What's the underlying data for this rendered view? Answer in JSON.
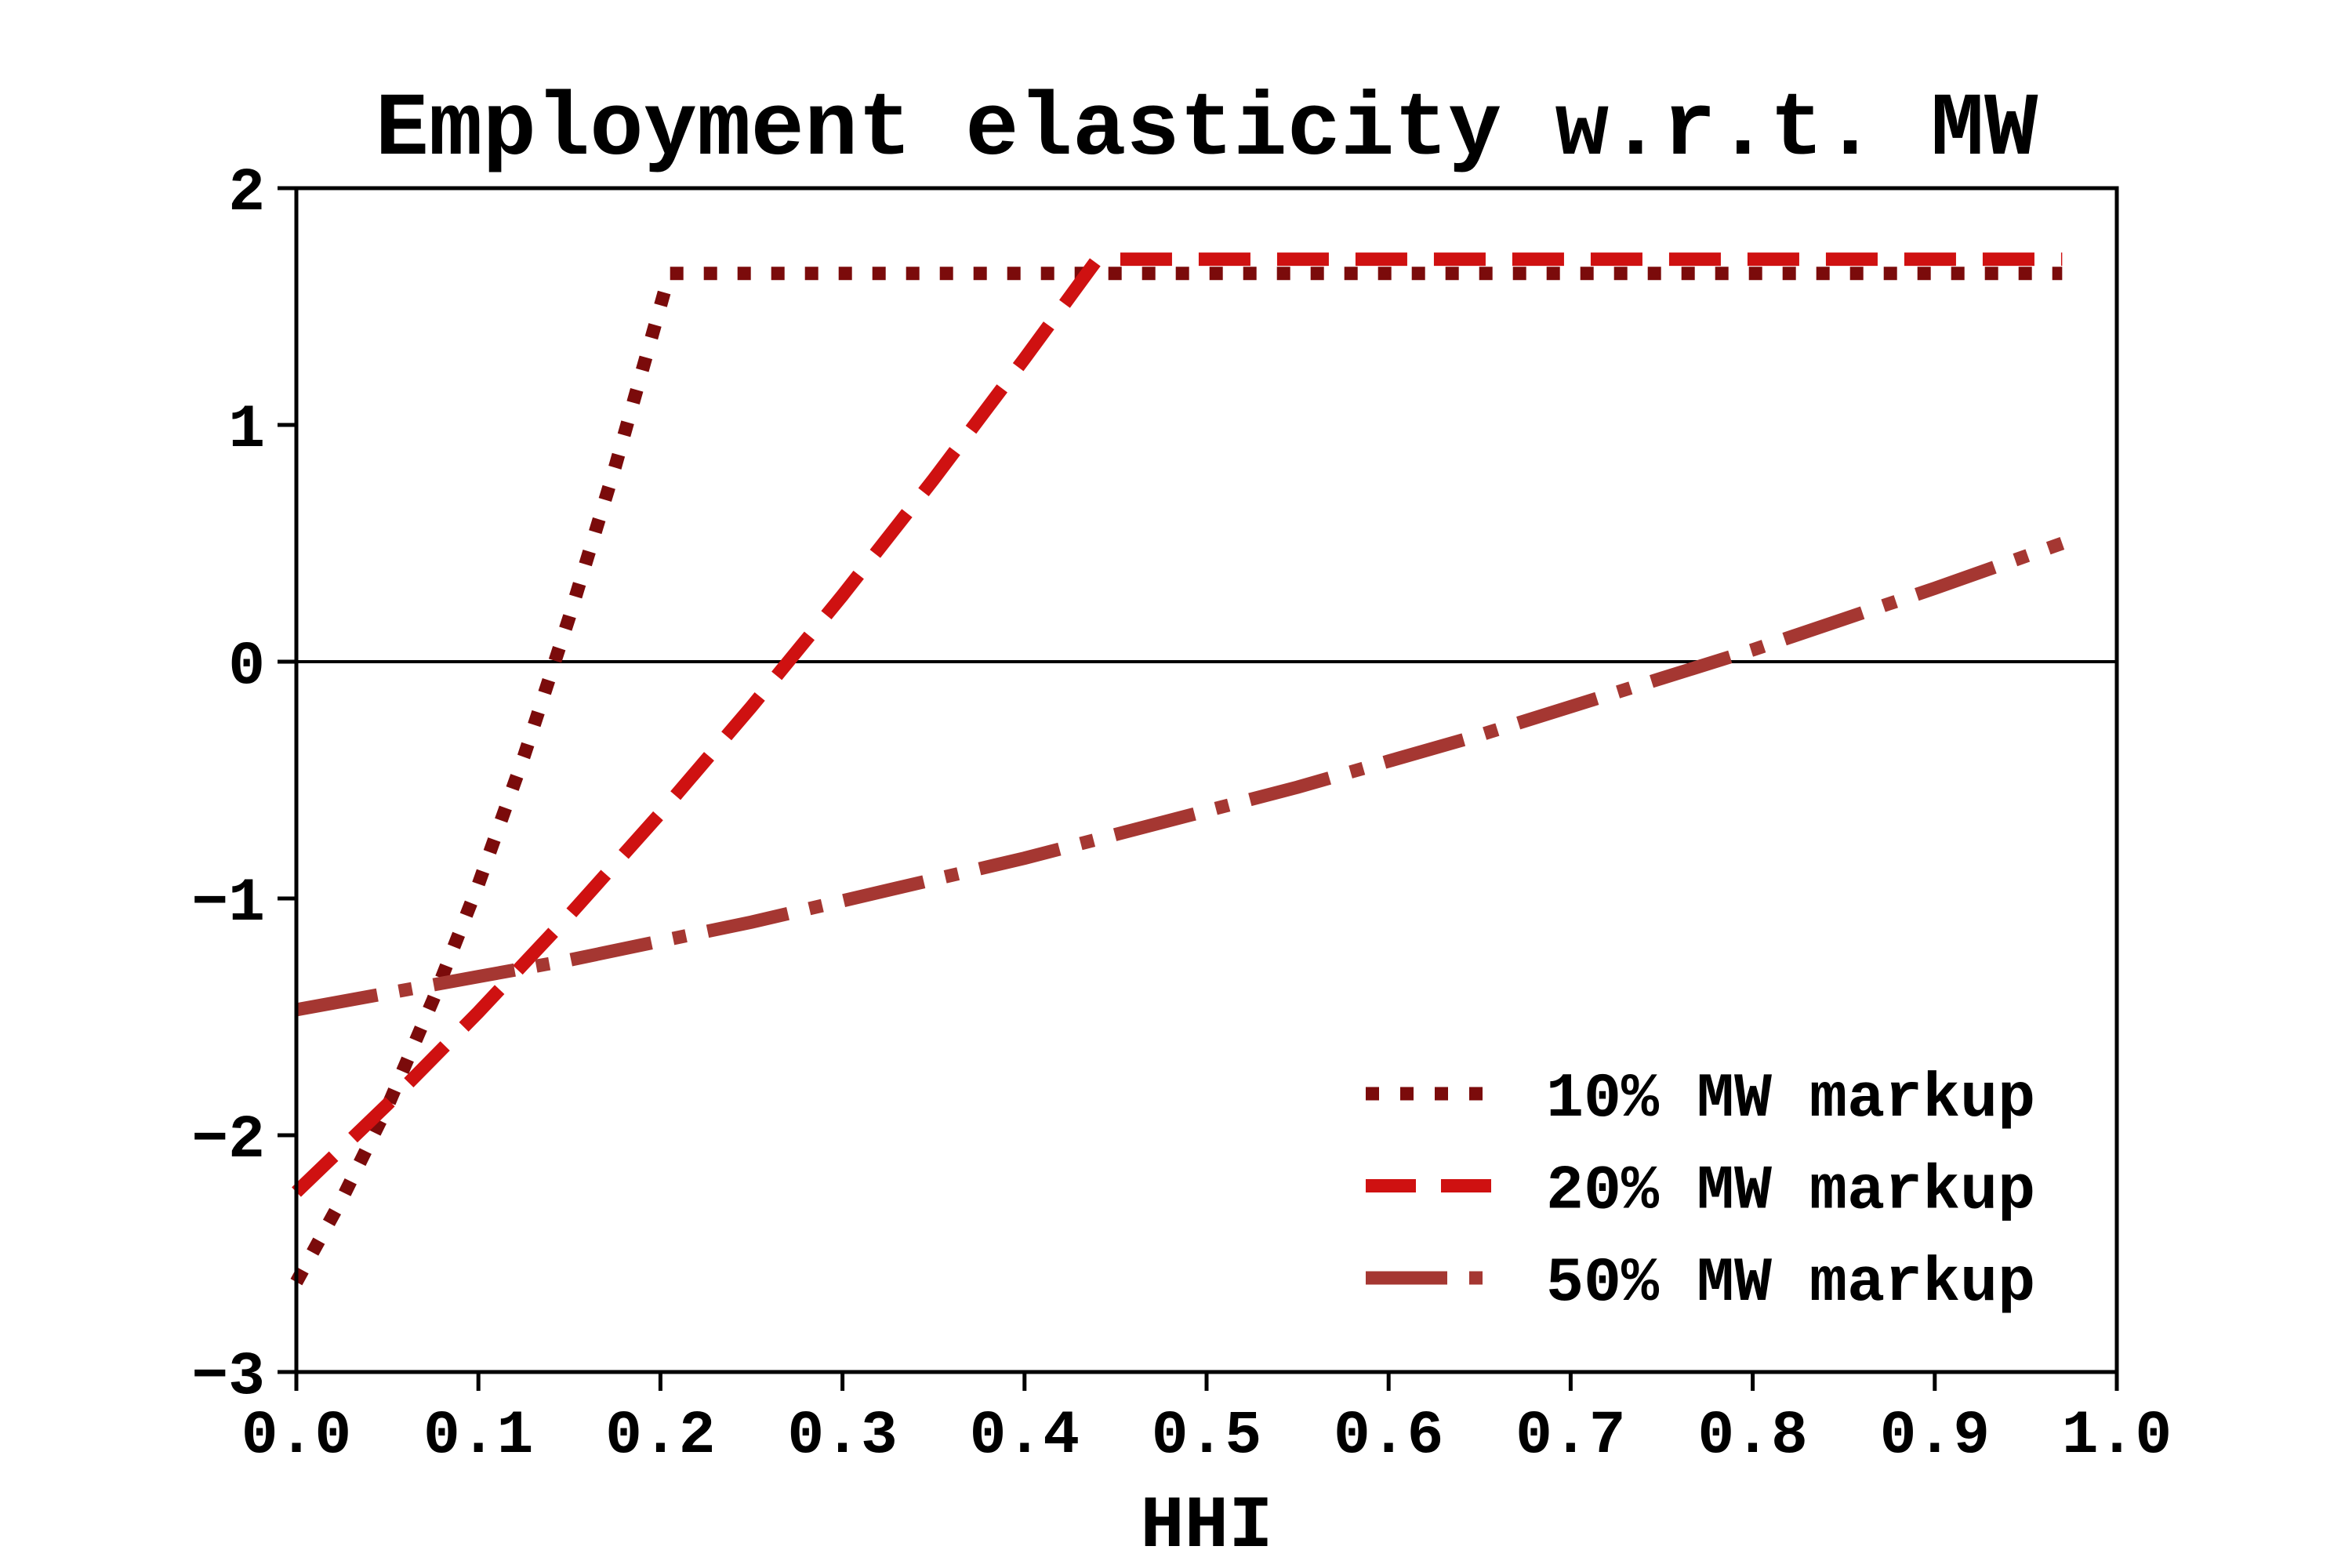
{
  "figure": {
    "background": "#ffffff"
  },
  "chart_data": {
    "type": "line",
    "title": "Employment elasticity w.r.t. MW",
    "xlabel": "HHI",
    "ylabel": "",
    "xlim": [
      0.0,
      1.0
    ],
    "ylim": [
      -3,
      2
    ],
    "grid": false,
    "zero_line": true,
    "legend_position": "lower right",
    "legend_frame": false,
    "axis_color": "#000000",
    "x_ticks": {
      "values": [
        0.0,
        0.1,
        0.2,
        0.3,
        0.4,
        0.5,
        0.6,
        0.7,
        0.8,
        0.9,
        1.0
      ],
      "labels": [
        "0.0",
        "0.1",
        "0.2",
        "0.3",
        "0.4",
        "0.5",
        "0.6",
        "0.7",
        "0.8",
        "0.9",
        "1.0"
      ]
    },
    "y_ticks": {
      "values": [
        -3,
        -2,
        -1,
        0,
        1,
        2
      ],
      "labels": [
        "−3",
        "−2",
        "−1",
        "0",
        "1",
        "2"
      ]
    },
    "series": [
      {
        "name": "10% MW markup",
        "linestyle": "dotted",
        "color": "#7b0b0b",
        "x": [
          0.0,
          0.025,
          0.05,
          0.075,
          0.1,
          0.125,
          0.15,
          0.175,
          0.205,
          0.3,
          0.4,
          0.5,
          0.6,
          0.7,
          0.8,
          0.9,
          0.97
        ],
        "y": [
          -2.62,
          -2.27,
          -1.88,
          -1.43,
          -0.94,
          -0.4,
          0.19,
          0.82,
          1.64,
          1.64,
          1.64,
          1.64,
          1.64,
          1.64,
          1.64,
          1.64,
          1.64
        ]
      },
      {
        "name": "20% MW markup",
        "linestyle": "dashed",
        "color": "#cf1111",
        "x": [
          0.0,
          0.05,
          0.1,
          0.15,
          0.2,
          0.25,
          0.3,
          0.35,
          0.4,
          0.44,
          0.5,
          0.6,
          0.7,
          0.8,
          0.9,
          0.97
        ],
        "y": [
          -2.24,
          -1.87,
          -1.48,
          -1.07,
          -0.64,
          -0.19,
          0.28,
          0.77,
          1.28,
          1.7,
          1.7,
          1.7,
          1.7,
          1.7,
          1.7,
          1.7
        ]
      },
      {
        "name": "50% MW markup",
        "linestyle": "dashdot",
        "color": "#a53732",
        "x": [
          0.0,
          0.05,
          0.1,
          0.15,
          0.2,
          0.25,
          0.3,
          0.35,
          0.4,
          0.45,
          0.5,
          0.55,
          0.6,
          0.65,
          0.7,
          0.75,
          0.8,
          0.85,
          0.9,
          0.97
        ],
        "y": [
          -1.47,
          -1.4,
          -1.33,
          -1.26,
          -1.18,
          -1.1,
          -1.01,
          -0.92,
          -0.83,
          -0.73,
          -0.63,
          -0.53,
          -0.42,
          -0.31,
          -0.19,
          -0.07,
          0.05,
          0.18,
          0.31,
          0.5
        ]
      }
    ]
  }
}
